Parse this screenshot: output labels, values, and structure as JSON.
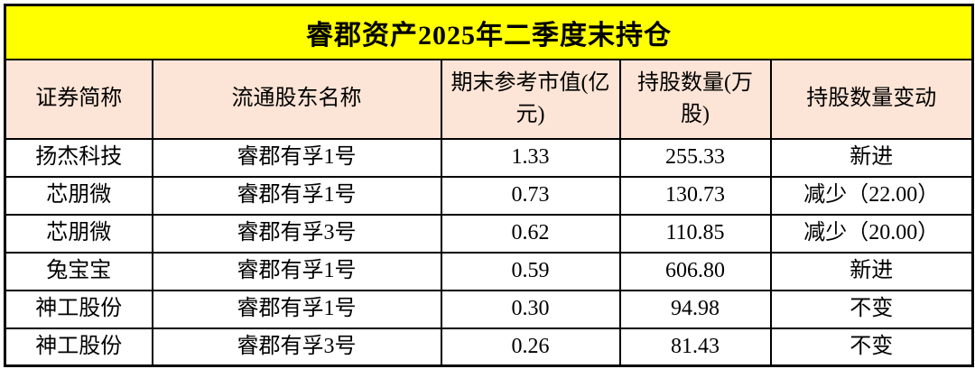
{
  "colors": {
    "title_bg": "#FFFF00",
    "header_bg": "#FCE4D6",
    "row_bg": "#FFFFFF",
    "border": "#000000",
    "text": "#000000"
  },
  "chart_data": {
    "type": "table",
    "title": "睿郡资产2025年二季度末持仓",
    "columns": [
      "证券简称",
      "流通股东名称",
      "期末参考市值(亿元)",
      "持股数量(万股)",
      "持股数量变动"
    ],
    "rows": [
      [
        "扬杰科技",
        "睿郡有孚1号",
        "1.33",
        "255.33",
        "新进"
      ],
      [
        "芯朋微",
        "睿郡有孚1号",
        "0.73",
        "130.73",
        "减少（22.00）"
      ],
      [
        "芯朋微",
        "睿郡有孚3号",
        "0.62",
        "110.85",
        "减少（20.00）"
      ],
      [
        "兔宝宝",
        "睿郡有孚1号",
        "0.59",
        "606.80",
        "新进"
      ],
      [
        "神工股份",
        "睿郡有孚1号",
        "0.30",
        "94.98",
        "不变"
      ],
      [
        "神工股份",
        "睿郡有孚3号",
        "0.26",
        "81.43",
        "不变"
      ]
    ]
  }
}
